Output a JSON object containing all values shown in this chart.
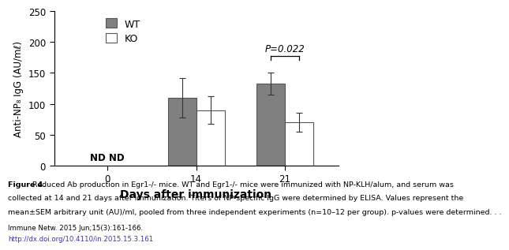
{
  "title": "",
  "xlabel": "Days after immunization",
  "ylabel": "Anti-NP₈ IgG (AU/mℓ)",
  "days": [
    0,
    14,
    21
  ],
  "wt_values": [
    null,
    110,
    133
  ],
  "ko_values": [
    null,
    90,
    70
  ],
  "wt_errors": [
    null,
    32,
    18
  ],
  "ko_errors": [
    null,
    22,
    15
  ],
  "wt_color": "#808080",
  "ko_color": "#ffffff",
  "bar_edge_color": "#555555",
  "bar_width": 0.32,
  "ylim": [
    0,
    250
  ],
  "yticks": [
    0,
    50,
    100,
    150,
    200,
    250
  ],
  "nd_label": "ND ND",
  "p_value_text": "P=0.022",
  "legend_wt": "WT",
  "legend_ko": "KO",
  "fig_caption_bold": "Figure 4.",
  "fig_caption_rest": " Reduced Ab production in ",
  "fig_caption_italic1": "Egr1",
  "fig_caption_rest2": "-/- mice. WT and ",
  "fig_caption_italic2": "Egr1",
  "fig_caption_rest3": "-/- mice were immunized with NP-KLH/alum, and serum was\ncollected at 14 and 21 days after immunization. Titers of NP-specific IgG were determined by ELISA. Values represent the\nmean±SEM arbitrary unit (AU)/ml, pooled from three independent experiments (n=10–12 per group). p-values were determined. . .",
  "journal_line1": "Immune Netw. 2015 Jun;15(3):161-166.",
  "journal_line2": "http://dx.doi.org/10.4110/in.2015.15.3.161",
  "background_color": "#ffffff",
  "xlabel_fontsize": 10,
  "ylabel_fontsize": 8.5,
  "tick_fontsize": 8.5,
  "legend_fontsize": 9,
  "caption_fontsize": 6.8,
  "journal_fontsize": 6.2,
  "nd_fontsize": 8.5
}
